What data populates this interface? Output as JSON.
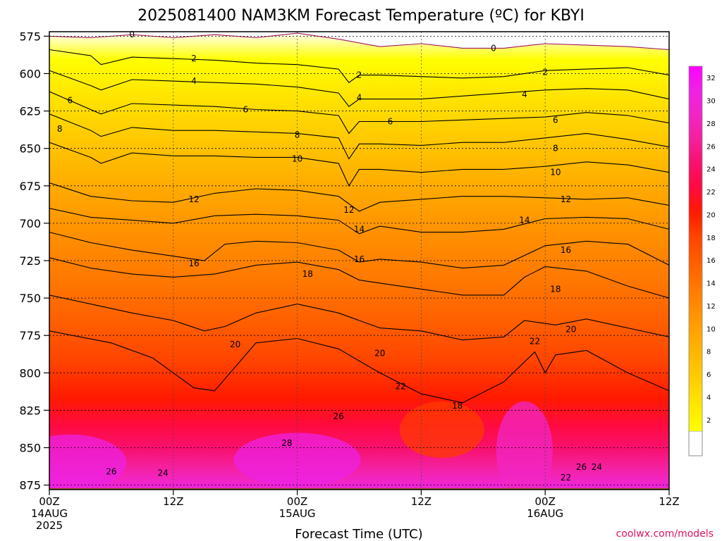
{
  "chart_data": {
    "type": "heatmap",
    "title": "2025081400 NAM3KM Forecast Temperature (ºC) for KBYI",
    "xlabel": "Forecast Time (UTC)",
    "ylabel": "",
    "credit": "coolwx.com/models",
    "y_ticks": [
      575,
      600,
      625,
      650,
      675,
      700,
      725,
      750,
      775,
      800,
      825,
      850,
      875
    ],
    "ylim": [
      572,
      878
    ],
    "xlim": [
      0,
      60
    ],
    "x_ticks": [
      {
        "hour": 0,
        "lines": [
          "00Z",
          "14AUG",
          "2025"
        ]
      },
      {
        "hour": 12,
        "lines": [
          "12Z"
        ]
      },
      {
        "hour": 24,
        "lines": [
          "00Z",
          "15AUG"
        ]
      },
      {
        "hour": 36,
        "lines": [
          "12Z"
        ]
      },
      {
        "hour": 48,
        "lines": [
          "00Z",
          "16AUG"
        ]
      },
      {
        "hour": 60,
        "lines": [
          "12Z"
        ]
      }
    ],
    "grid": true,
    "colorbar_ticks": [
      2,
      4,
      6,
      8,
      10,
      12,
      14,
      16,
      18,
      20,
      22,
      24,
      26,
      28,
      30,
      32
    ],
    "colors": [
      "#ffffff",
      "#ffff00",
      "#ffe800",
      "#ffd000",
      "#ffbb00",
      "#ffa500",
      "#ff8e00",
      "#ff7600",
      "#ff5d00",
      "#ff4400",
      "#ff1a00",
      "#ff0a40",
      "#f8106e",
      "#f4209e",
      "#f225c5",
      "#ee22e3",
      "#ff00ff"
    ],
    "ground_color": "#a0522d",
    "isotherms": [
      {
        "label": "0",
        "points": [
          [
            0,
            575
          ],
          [
            4,
            576
          ],
          [
            8,
            574
          ],
          [
            12,
            576
          ],
          [
            16,
            574
          ],
          [
            20,
            576
          ],
          [
            24,
            573
          ],
          [
            28,
            577
          ],
          [
            32,
            582
          ],
          [
            36,
            580
          ],
          [
            40,
            583
          ],
          [
            44,
            583
          ],
          [
            48,
            580
          ],
          [
            52,
            581
          ],
          [
            56,
            582
          ],
          [
            60,
            584
          ]
        ]
      },
      {
        "label": "2",
        "points": [
          [
            0,
            584
          ],
          [
            4,
            588
          ],
          [
            5,
            594
          ],
          [
            8,
            589
          ],
          [
            12,
            590
          ],
          [
            16,
            591
          ],
          [
            20,
            593
          ],
          [
            24,
            594
          ],
          [
            28,
            597
          ],
          [
            29,
            606
          ],
          [
            30,
            601
          ],
          [
            32,
            601
          ],
          [
            36,
            602
          ],
          [
            40,
            603
          ],
          [
            44,
            602
          ],
          [
            48,
            598
          ],
          [
            52,
            597
          ],
          [
            56,
            596
          ],
          [
            60,
            601
          ]
        ]
      },
      {
        "label": "4",
        "points": [
          [
            0,
            598
          ],
          [
            4,
            608
          ],
          [
            5,
            611
          ],
          [
            8,
            604
          ],
          [
            12,
            605
          ],
          [
            16,
            606
          ],
          [
            20,
            607
          ],
          [
            24,
            609
          ],
          [
            28,
            613
          ],
          [
            29,
            622
          ],
          [
            30,
            617
          ],
          [
            32,
            617
          ],
          [
            36,
            617
          ],
          [
            40,
            615
          ],
          [
            44,
            613
          ],
          [
            48,
            611
          ],
          [
            52,
            610
          ],
          [
            56,
            611
          ],
          [
            60,
            617
          ]
        ]
      },
      {
        "label": "6",
        "points": [
          [
            0,
            612
          ],
          [
            4,
            624
          ],
          [
            5,
            627
          ],
          [
            8,
            620
          ],
          [
            12,
            621
          ],
          [
            16,
            622
          ],
          [
            20,
            624
          ],
          [
            24,
            625
          ],
          [
            28,
            628
          ],
          [
            29,
            640
          ],
          [
            30,
            632
          ],
          [
            32,
            632
          ],
          [
            36,
            632
          ],
          [
            40,
            631
          ],
          [
            44,
            630
          ],
          [
            48,
            629
          ],
          [
            52,
            626
          ],
          [
            56,
            628
          ],
          [
            60,
            633
          ]
        ]
      },
      {
        "label": "8",
        "points": [
          [
            0,
            627
          ],
          [
            4,
            638
          ],
          [
            5,
            642
          ],
          [
            8,
            636
          ],
          [
            12,
            638
          ],
          [
            16,
            638
          ],
          [
            20,
            639
          ],
          [
            24,
            640
          ],
          [
            28,
            643
          ],
          [
            29,
            657
          ],
          [
            30,
            647
          ],
          [
            32,
            647
          ],
          [
            36,
            648
          ],
          [
            40,
            646
          ],
          [
            44,
            646
          ],
          [
            48,
            643
          ],
          [
            52,
            640
          ],
          [
            56,
            644
          ],
          [
            60,
            649
          ]
        ]
      },
      {
        "label": "10",
        "points": [
          [
            0,
            646
          ],
          [
            4,
            656
          ],
          [
            5,
            660
          ],
          [
            8,
            653
          ],
          [
            12,
            655
          ],
          [
            16,
            655
          ],
          [
            20,
            656
          ],
          [
            24,
            656
          ],
          [
            28,
            660
          ],
          [
            29,
            675
          ],
          [
            30,
            664
          ],
          [
            32,
            664
          ],
          [
            36,
            666
          ],
          [
            40,
            664
          ],
          [
            44,
            664
          ],
          [
            48,
            662
          ],
          [
            52,
            659
          ],
          [
            56,
            661
          ],
          [
            60,
            666
          ]
        ]
      },
      {
        "label": "12",
        "points": [
          [
            0,
            673
          ],
          [
            4,
            682
          ],
          [
            8,
            685
          ],
          [
            12,
            686
          ],
          [
            16,
            680
          ],
          [
            20,
            677
          ],
          [
            24,
            678
          ],
          [
            28,
            682
          ],
          [
            30,
            692
          ],
          [
            32,
            686
          ],
          [
            36,
            684
          ],
          [
            40,
            682
          ],
          [
            44,
            682
          ],
          [
            48,
            683
          ],
          [
            52,
            684
          ],
          [
            56,
            683
          ],
          [
            60,
            688
          ]
        ]
      },
      {
        "label": "14",
        "points": [
          [
            0,
            690
          ],
          [
            4,
            696
          ],
          [
            8,
            698
          ],
          [
            12,
            700
          ],
          [
            16,
            695
          ],
          [
            20,
            694
          ],
          [
            24,
            695
          ],
          [
            28,
            698
          ],
          [
            30,
            707
          ],
          [
            32,
            702
          ],
          [
            36,
            706
          ],
          [
            40,
            706
          ],
          [
            44,
            704
          ],
          [
            48,
            697
          ],
          [
            52,
            696
          ],
          [
            56,
            697
          ],
          [
            60,
            704
          ]
        ]
      },
      {
        "label": "16",
        "points": [
          [
            0,
            706
          ],
          [
            4,
            713
          ],
          [
            8,
            718
          ],
          [
            12,
            722
          ],
          [
            15,
            725
          ],
          [
            17,
            714
          ],
          [
            20,
            712
          ],
          [
            24,
            713
          ],
          [
            28,
            718
          ],
          [
            30,
            726
          ],
          [
            32,
            724
          ],
          [
            36,
            726
          ],
          [
            40,
            730
          ],
          [
            44,
            728
          ],
          [
            48,
            715
          ],
          [
            52,
            712
          ],
          [
            56,
            714
          ],
          [
            60,
            728
          ]
        ]
      },
      {
        "label": "18",
        "points": [
          [
            0,
            723
          ],
          [
            4,
            730
          ],
          [
            8,
            734
          ],
          [
            12,
            736
          ],
          [
            16,
            734
          ],
          [
            20,
            728
          ],
          [
            24,
            726
          ],
          [
            28,
            731
          ],
          [
            30,
            738
          ],
          [
            32,
            740
          ],
          [
            36,
            744
          ],
          [
            40,
            748
          ],
          [
            44,
            748
          ],
          [
            46,
            736
          ],
          [
            48,
            729
          ],
          [
            52,
            732
          ],
          [
            56,
            742
          ],
          [
            60,
            750
          ]
        ]
      },
      {
        "label": "20",
        "points": [
          [
            0,
            748
          ],
          [
            4,
            754
          ],
          [
            8,
            760
          ],
          [
            12,
            765
          ],
          [
            15,
            772
          ],
          [
            17,
            769
          ],
          [
            20,
            760
          ],
          [
            24,
            754
          ],
          [
            28,
            760
          ],
          [
            32,
            770
          ],
          [
            36,
            772
          ],
          [
            40,
            778
          ],
          [
            44,
            776
          ],
          [
            46,
            765
          ],
          [
            49,
            768
          ],
          [
            52,
            764
          ],
          [
            56,
            770
          ],
          [
            60,
            776
          ]
        ]
      },
      {
        "label": "22",
        "points": [
          [
            0,
            772
          ],
          [
            6,
            780
          ],
          [
            10,
            790
          ],
          [
            14,
            810
          ],
          [
            16,
            812
          ],
          [
            18,
            796
          ],
          [
            20,
            780
          ],
          [
            24,
            777
          ],
          [
            28,
            784
          ],
          [
            32,
            800
          ],
          [
            36,
            814
          ],
          [
            40,
            820
          ],
          [
            44,
            806
          ],
          [
            47,
            786
          ],
          [
            48,
            800
          ],
          [
            49,
            788
          ],
          [
            52,
            785
          ],
          [
            56,
            800
          ],
          [
            60,
            812
          ]
        ]
      }
    ],
    "contour_labels": [
      {
        "text": "0",
        "x": 8.0,
        "p": 574
      },
      {
        "text": "0",
        "x": 43.0,
        "p": 583
      },
      {
        "text": "2",
        "x": 14.0,
        "p": 590
      },
      {
        "text": "2",
        "x": 30.0,
        "p": 601
      },
      {
        "text": "2",
        "x": 48.0,
        "p": 599
      },
      {
        "text": "4",
        "x": 14.0,
        "p": 605
      },
      {
        "text": "4",
        "x": 30.0,
        "p": 616
      },
      {
        "text": "4",
        "x": 46.0,
        "p": 614
      },
      {
        "text": "6",
        "x": 2.0,
        "p": 618
      },
      {
        "text": "6",
        "x": 19.0,
        "p": 624
      },
      {
        "text": "6",
        "x": 33.0,
        "p": 632
      },
      {
        "text": "6",
        "x": 49.0,
        "p": 631
      },
      {
        "text": "8",
        "x": 1.0,
        "p": 637
      },
      {
        "text": "8",
        "x": 24.0,
        "p": 641
      },
      {
        "text": "8",
        "x": 49.0,
        "p": 650
      },
      {
        "text": "10",
        "x": 24.0,
        "p": 657
      },
      {
        "text": "10",
        "x": 49.0,
        "p": 666
      },
      {
        "text": "12",
        "x": 14.0,
        "p": 684
      },
      {
        "text": "12",
        "x": 29.0,
        "p": 691
      },
      {
        "text": "12",
        "x": 50.0,
        "p": 684
      },
      {
        "text": "14",
        "x": 30.0,
        "p": 704
      },
      {
        "text": "14",
        "x": 46.0,
        "p": 698
      },
      {
        "text": "16",
        "x": 14.0,
        "p": 727
      },
      {
        "text": "16",
        "x": 30.0,
        "p": 724
      },
      {
        "text": "16",
        "x": 50.0,
        "p": 718
      },
      {
        "text": "18",
        "x": 25.0,
        "p": 734
      },
      {
        "text": "18",
        "x": 49.0,
        "p": 744
      },
      {
        "text": "18",
        "x": 39.5,
        "p": 822
      },
      {
        "text": "20",
        "x": 18.0,
        "p": 781
      },
      {
        "text": "20",
        "x": 32.0,
        "p": 787
      },
      {
        "text": "20",
        "x": 50.5,
        "p": 771
      },
      {
        "text": "22",
        "x": 34.0,
        "p": 809
      },
      {
        "text": "22",
        "x": 47.0,
        "p": 779
      },
      {
        "text": "22",
        "x": 50.0,
        "p": 870
      },
      {
        "text": "24",
        "x": 11.0,
        "p": 867
      },
      {
        "text": "24",
        "x": 53.0,
        "p": 863
      },
      {
        "text": "26",
        "x": 6.0,
        "p": 866
      },
      {
        "text": "26",
        "x": 28.0,
        "p": 829
      },
      {
        "text": "26",
        "x": 51.5,
        "p": 863
      },
      {
        "text": "28",
        "x": 23.0,
        "p": 847
      }
    ]
  }
}
